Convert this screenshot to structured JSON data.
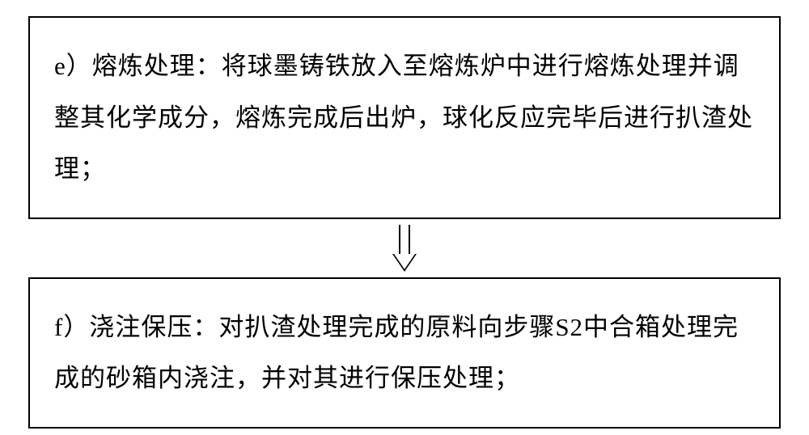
{
  "flowchart": {
    "type": "flowchart",
    "direction": "vertical",
    "background_color": "#ffffff",
    "node_border_color": "#000000",
    "node_border_width": 2,
    "text_color": "#000000",
    "font_family": "SimSun",
    "font_size_pt": 23,
    "line_height": 2.05,
    "arrow_style": "hollow",
    "arrow_color": "#000000",
    "nodes": [
      {
        "id": "step-e",
        "label": "e）熔炼处理：将球墨铸铁放入至熔炼炉中进行熔炼处理并调整其化学成分，熔炼完成后出炉，球化反应完毕后进行扒渣处理；",
        "position": "top"
      },
      {
        "id": "step-f",
        "label": "f）浇注保压：对扒渣处理完成的原料向步骤S2中合箱处理完成的砂箱内浇注，并对其进行保压处理；",
        "position": "bottom"
      }
    ],
    "edges": [
      {
        "from": "step-e",
        "to": "step-f",
        "arrow_type": "hollow-down"
      }
    ]
  }
}
